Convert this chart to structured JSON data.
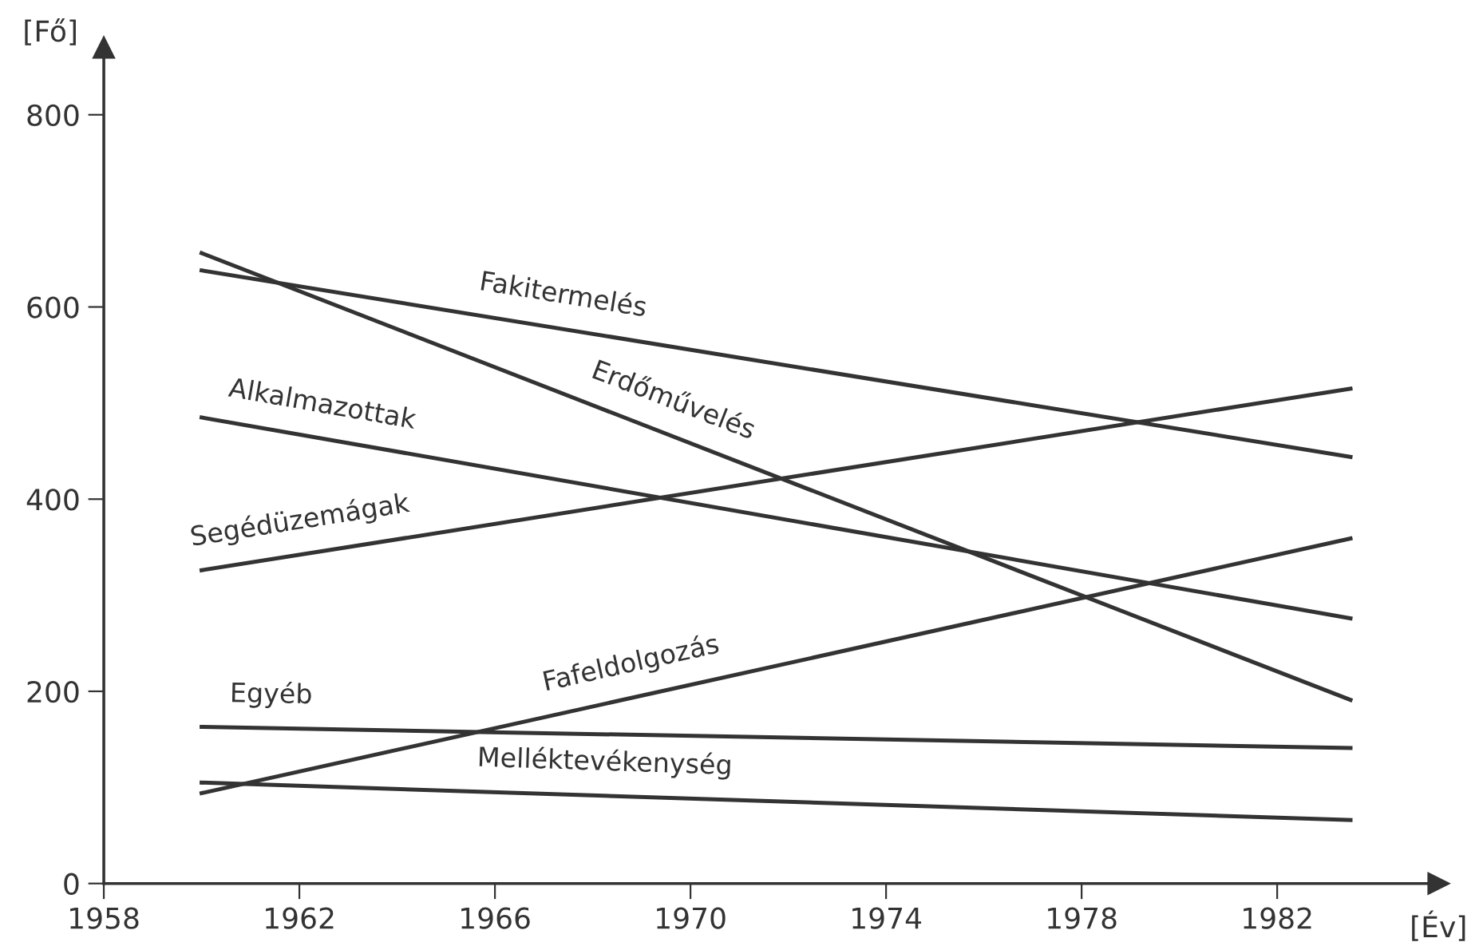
{
  "chart_data": {
    "type": "line",
    "xlabel": "[Év]",
    "ylabel": "[Fő]",
    "x": [
      1960,
      1983.5
    ],
    "series": [
      {
        "name": "Fakitermelés",
        "color": "#333333",
        "values": [
          638,
          444
        ]
      },
      {
        "name": "Erdőművelés",
        "color": "#333333",
        "values": [
          656,
          191
        ]
      },
      {
        "name": "Alkalmazottak",
        "color": "#333333",
        "values": [
          485,
          276
        ]
      },
      {
        "name": "Segédüzemágak",
        "color": "#333333",
        "values": [
          326,
          515
        ]
      },
      {
        "name": "Fafeldolgozás",
        "color": "#333333",
        "values": [
          94,
          359
        ]
      },
      {
        "name": "Egyéb",
        "color": "#333333",
        "values": [
          163,
          141
        ]
      },
      {
        "name": "Melléktevékenység",
        "color": "#333333",
        "values": [
          105,
          66
        ]
      }
    ],
    "xlim": [
      1958,
      1985.3
    ],
    "ylim": [
      0,
      870
    ],
    "xticks": [
      1958,
      1962,
      1966,
      1970,
      1974,
      1978,
      1982
    ],
    "yticks": [
      0,
      200,
      400,
      600,
      800
    ],
    "grid": false,
    "legend": false,
    "marker": "none",
    "line_style": "solid"
  }
}
